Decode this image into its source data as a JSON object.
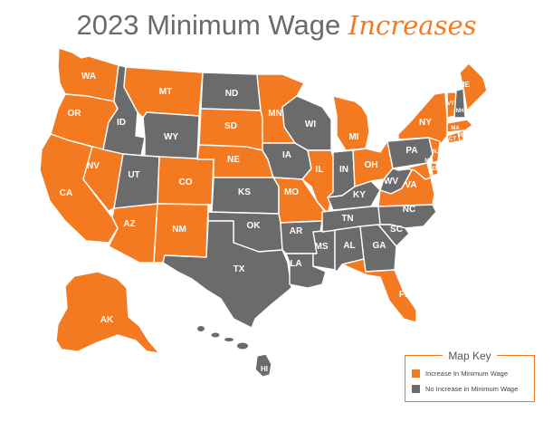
{
  "title": {
    "main": "2023 Minimum Wage",
    "accent": "Increases"
  },
  "colors": {
    "increase": "#f37a20",
    "no_increase": "#6b6b6b",
    "title_gray": "#6a6a6a",
    "accent": "#f37a20"
  },
  "map_key": {
    "title": "Map Key",
    "items": [
      {
        "label": "Increase In Minimum Wage",
        "status": "increase"
      },
      {
        "label": "No Increase in Minimum Wage",
        "status": "no_increase"
      }
    ]
  },
  "states": [
    {
      "abbr": "WA",
      "status": "increase"
    },
    {
      "abbr": "OR",
      "status": "increase"
    },
    {
      "abbr": "CA",
      "status": "increase"
    },
    {
      "abbr": "NV",
      "status": "increase"
    },
    {
      "abbr": "ID",
      "status": "no_increase"
    },
    {
      "abbr": "MT",
      "status": "increase"
    },
    {
      "abbr": "WY",
      "status": "no_increase"
    },
    {
      "abbr": "UT",
      "status": "no_increase"
    },
    {
      "abbr": "AZ",
      "status": "increase"
    },
    {
      "abbr": "CO",
      "status": "increase"
    },
    {
      "abbr": "NM",
      "status": "increase"
    },
    {
      "abbr": "ND",
      "status": "no_increase"
    },
    {
      "abbr": "SD",
      "status": "increase"
    },
    {
      "abbr": "NE",
      "status": "increase"
    },
    {
      "abbr": "KS",
      "status": "no_increase"
    },
    {
      "abbr": "OK",
      "status": "no_increase"
    },
    {
      "abbr": "TX",
      "status": "no_increase"
    },
    {
      "abbr": "MN",
      "status": "increase"
    },
    {
      "abbr": "IA",
      "status": "no_increase"
    },
    {
      "abbr": "MO",
      "status": "increase"
    },
    {
      "abbr": "AR",
      "status": "no_increase"
    },
    {
      "abbr": "LA",
      "status": "no_increase"
    },
    {
      "abbr": "WI",
      "status": "no_increase"
    },
    {
      "abbr": "IL",
      "status": "increase"
    },
    {
      "abbr": "MS",
      "status": "no_increase"
    },
    {
      "abbr": "MI",
      "status": "increase"
    },
    {
      "abbr": "IN",
      "status": "no_increase"
    },
    {
      "abbr": "KY",
      "status": "no_increase"
    },
    {
      "abbr": "TN",
      "status": "no_increase"
    },
    {
      "abbr": "AL",
      "status": "no_increase"
    },
    {
      "abbr": "OH",
      "status": "increase"
    },
    {
      "abbr": "GA",
      "status": "no_increase"
    },
    {
      "abbr": "FL",
      "status": "increase"
    },
    {
      "abbr": "WV",
      "status": "no_increase"
    },
    {
      "abbr": "VA",
      "status": "increase"
    },
    {
      "abbr": "NC",
      "status": "no_increase"
    },
    {
      "abbr": "SC",
      "status": "no_increase"
    },
    {
      "abbr": "PA",
      "status": "no_increase"
    },
    {
      "abbr": "NY",
      "status": "increase"
    },
    {
      "abbr": "NJ",
      "status": "increase"
    },
    {
      "abbr": "DE",
      "status": "increase"
    },
    {
      "abbr": "MD",
      "status": "increase"
    },
    {
      "abbr": "CT",
      "status": "increase"
    },
    {
      "abbr": "RI",
      "status": "increase"
    },
    {
      "abbr": "MA",
      "status": "increase"
    },
    {
      "abbr": "VT",
      "status": "increase"
    },
    {
      "abbr": "NH",
      "status": "no_increase"
    },
    {
      "abbr": "ME",
      "status": "increase"
    },
    {
      "abbr": "AK",
      "status": "increase"
    },
    {
      "abbr": "HI",
      "status": "no_increase"
    }
  ]
}
